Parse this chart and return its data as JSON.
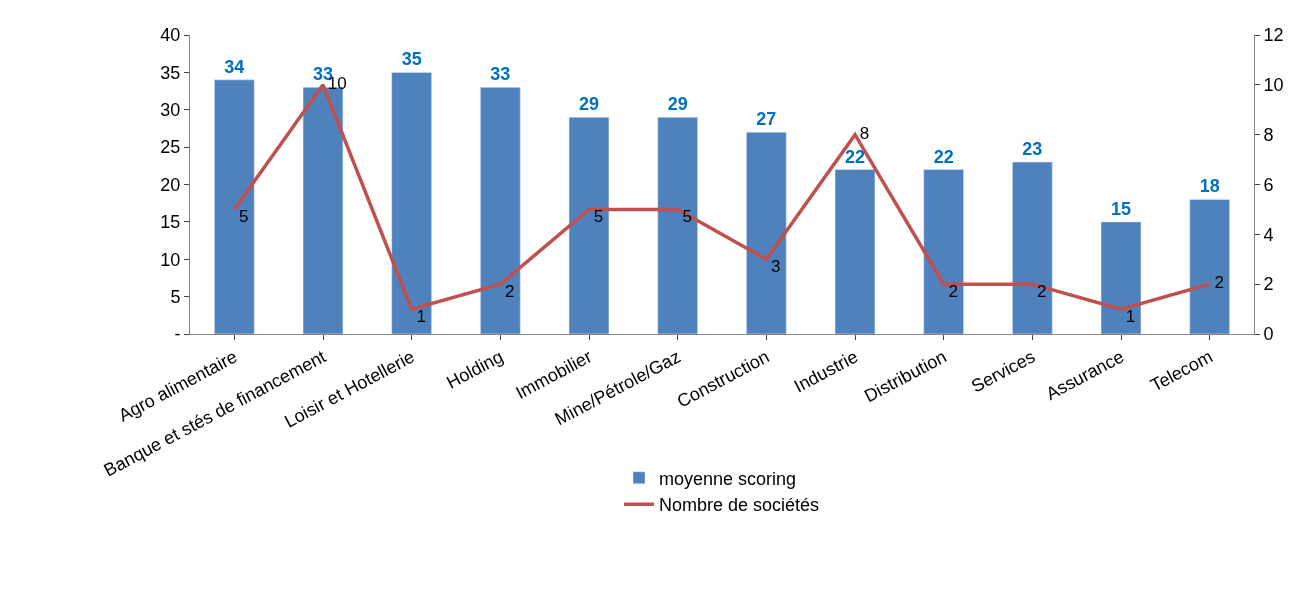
{
  "chart_data": {
    "type": "bar",
    "categories": [
      "Agro alimentaire",
      "Banque et stés de financement",
      "Loisir et Hotellerie",
      "Holding",
      "Immobilier",
      "Mine/Pétrole/Gaz",
      "Construction",
      "Industrie",
      "Distribution",
      "Services",
      "Assurance",
      "Telecom"
    ],
    "series": [
      {
        "name": "moyenne scoring",
        "color": "#4f81bd",
        "values": [
          34,
          33,
          35,
          33,
          29,
          29,
          27,
          22,
          22,
          23,
          15,
          18
        ]
      },
      {
        "name": "Nombre de sociétés",
        "color": "#c0504d",
        "type": "line",
        "axis": "y2",
        "values": [
          5,
          10,
          1,
          2,
          5,
          5,
          3,
          8,
          2,
          2,
          1,
          2
        ]
      }
    ],
    "data_labels": true,
    "ylim": [
      0,
      40
    ],
    "yticks": [
      {
        "value": 0,
        "label": "-"
      },
      5,
      10,
      15,
      20,
      25,
      30,
      35,
      40
    ],
    "y2lim": [
      0,
      12
    ],
    "y2ticks": [
      0,
      2,
      4,
      6,
      8,
      10,
      12
    ],
    "legend": "bottom",
    "marker": "none"
  }
}
